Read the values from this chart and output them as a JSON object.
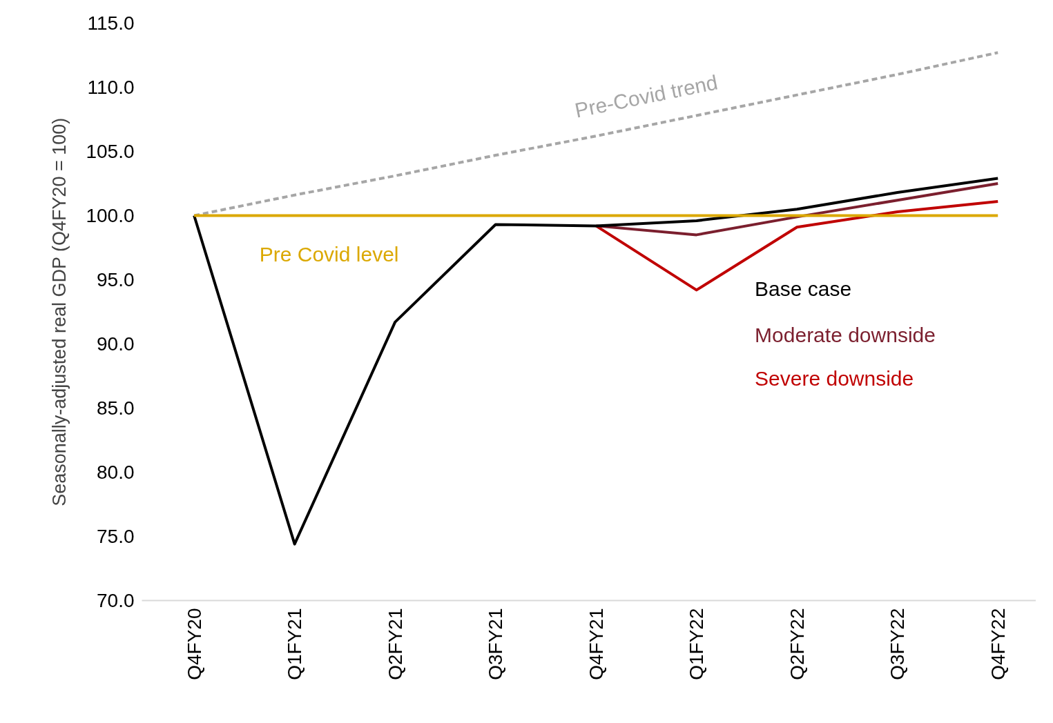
{
  "chart_data": {
    "type": "line",
    "ylabel": "Seasonally-adjusted real GDP (Q4FY20 = 100)",
    "categories": [
      "Q4FY20",
      "Q1FY21",
      "Q2FY21",
      "Q3FY21",
      "Q4FY21",
      "Q1FY22",
      "Q2FY22",
      "Q3FY22",
      "Q4FY22"
    ],
    "series": [
      {
        "name": "Pre-Covid trend",
        "color": "#a6a6a6",
        "line_style": "dashed",
        "values": [
          100.0,
          101.6,
          103.1,
          104.7,
          106.2,
          107.8,
          109.4,
          111.0,
          112.7
        ]
      },
      {
        "name": "Severe downside",
        "color": "#c00000",
        "values": [
          null,
          null,
          null,
          null,
          99.2,
          94.2,
          99.1,
          100.3,
          101.1
        ]
      },
      {
        "name": "Moderate downside",
        "color": "#7b1f2e",
        "values": [
          null,
          null,
          null,
          null,
          99.2,
          98.5,
          99.9,
          101.2,
          102.5
        ]
      },
      {
        "name": "Base case",
        "color": "#000000",
        "values": [
          100.0,
          74.4,
          91.7,
          99.3,
          99.2,
          99.6,
          100.5,
          101.8,
          102.9
        ]
      },
      {
        "name": "Pre Covid level",
        "color": "#dba800",
        "values": [
          100.0,
          100.0,
          100.0,
          100.0,
          100.0,
          100.0,
          100.0,
          100.0,
          100.0
        ]
      }
    ],
    "ylim": [
      70,
      115
    ],
    "yticks": [
      {
        "value": 70,
        "label": "70.0"
      },
      {
        "value": 75,
        "label": "75.0"
      },
      {
        "value": 80,
        "label": "80.0"
      },
      {
        "value": 85,
        "label": "85.0"
      },
      {
        "value": 90,
        "label": "90.0"
      },
      {
        "value": 95,
        "label": "95.0"
      },
      {
        "value": 100,
        "label": "100.0"
      },
      {
        "value": 105,
        "label": "105.0"
      },
      {
        "value": 110,
        "label": "110.0"
      },
      {
        "value": 115,
        "label": "115.0"
      }
    ],
    "grid": false,
    "marker": "none",
    "line_style": "solid"
  }
}
